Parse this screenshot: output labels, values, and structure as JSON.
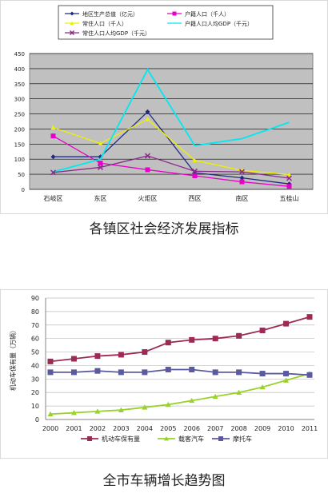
{
  "chart_data": [
    {
      "type": "line",
      "caption": "各镇区社会经济发展指标",
      "categories": [
        "石岐区",
        "东区",
        "火炬区",
        "西区",
        "南区",
        "五桂山"
      ],
      "ylim": [
        0,
        450
      ],
      "yticks": [
        0,
        50,
        100,
        150,
        200,
        250,
        300,
        350,
        400,
        450
      ],
      "grid": true,
      "legend_position": "top",
      "series": [
        {
          "name": "地区生产总值（亿元）",
          "color": "#1f2a80",
          "marker": "diamond",
          "values": [
            108,
            108,
            257,
            55,
            38,
            18
          ]
        },
        {
          "name": "户籍人口（千人）",
          "color": "#e800c8",
          "marker": "square",
          "values": [
            177,
            87,
            65,
            45,
            25,
            10
          ]
        },
        {
          "name": "常住人口（千人）",
          "color": "#f0f000",
          "marker": "triangle",
          "values": [
            205,
            152,
            232,
            96,
            63,
            49
          ]
        },
        {
          "name": "户籍人口人均GDP（千元）",
          "color": "#00e8f0",
          "marker": "none",
          "values": [
            58,
            100,
            397,
            145,
            168,
            222
          ]
        },
        {
          "name": "常住人口人均GDP（千元）",
          "color": "#8a2a8a",
          "marker": "x",
          "values": [
            56,
            73,
            111,
            60,
            58,
            37
          ]
        }
      ]
    },
    {
      "type": "line",
      "caption": "全市车辆增长趋势图",
      "ylabel": "机动车保有量（万辆）",
      "categories": [
        "2000",
        "2001",
        "2002",
        "2003",
        "2004",
        "2005",
        "2006",
        "2007",
        "2008",
        "2009",
        "2010",
        "2011"
      ],
      "ylim": [
        0,
        90
      ],
      "yticks": [
        0,
        10,
        20,
        30,
        40,
        50,
        60,
        70,
        80,
        90
      ],
      "grid": true,
      "legend_position": "bottom",
      "series": [
        {
          "name": "机动车保有量",
          "color": "#9c2a55",
          "marker": "square",
          "values": [
            43,
            45,
            47,
            48,
            50,
            57,
            59,
            60,
            62,
            66,
            71,
            76
          ]
        },
        {
          "name": "载客汽车",
          "color": "#9ad22c",
          "marker": "triangle",
          "values": [
            4,
            5,
            6,
            7,
            9,
            11,
            14,
            17,
            20,
            24,
            29,
            34
          ]
        },
        {
          "name": "摩托车",
          "color": "#5a5aa0",
          "marker": "square",
          "values": [
            35,
            35,
            36,
            35,
            35,
            37,
            37,
            35,
            35,
            34,
            34,
            33
          ]
        }
      ]
    }
  ]
}
